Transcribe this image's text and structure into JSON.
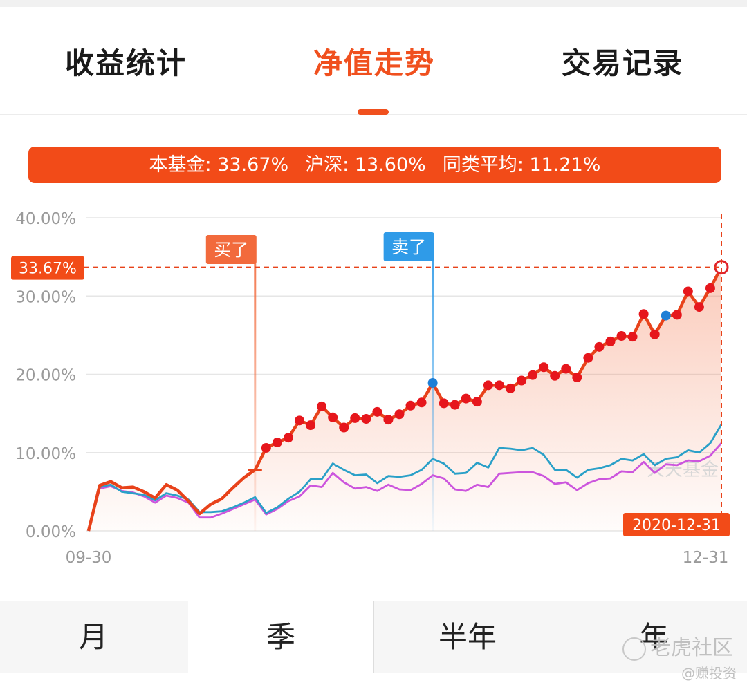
{
  "tabs": [
    {
      "label": "收益统计",
      "active": false
    },
    {
      "label": "净值走势",
      "active": true
    },
    {
      "label": "交易记录",
      "active": false
    }
  ],
  "summary": {
    "fund": "本基金: 33.67%",
    "hs": "沪深: 13.60%",
    "peer": "同类平均: 11.21%"
  },
  "markers": {
    "buy": "买了",
    "sell": "卖了",
    "current_value": "33.67%",
    "end_date": "2020-12-31"
  },
  "chart_watermark": "天天基金",
  "periods": [
    "月",
    "季",
    "半年",
    "年"
  ],
  "active_period": "季",
  "watermarks": {
    "brand": "老虎社区",
    "author": "@赚投资"
  },
  "colors": {
    "accent": "#f0501e",
    "fund_line": "#e8421a",
    "hs_line": "#2aa0c8",
    "peer_line": "#cc55dd",
    "buy": "#f26a3c",
    "sell": "#2f9be8"
  },
  "chart_data": {
    "type": "line",
    "x_start": "09-30",
    "x_end": "12-31",
    "yticks": [
      "0.00%",
      "10.00%",
      "20.00%",
      "30.00%",
      "40.00%"
    ],
    "ylim": [
      0,
      40
    ],
    "buy_index": 15,
    "sell_index": 31,
    "series": [
      {
        "name": "本基金",
        "values": [
          0,
          5.8,
          6.3,
          5.5,
          5.6,
          5.0,
          4.2,
          5.9,
          5.2,
          3.8,
          2.2,
          3.4,
          4.1,
          5.5,
          6.8,
          7.8,
          10.6,
          11.3,
          11.9,
          14.1,
          13.5,
          15.9,
          14.5,
          13.2,
          14.4,
          14.3,
          15.2,
          14.2,
          14.9,
          16.0,
          16.4,
          18.9,
          16.3,
          16.1,
          16.9,
          16.5,
          18.6,
          18.6,
          18.2,
          19.2,
          19.9,
          20.9,
          19.8,
          20.7,
          19.6,
          22.1,
          23.5,
          24.2,
          24.9,
          24.8,
          27.7,
          25.1,
          27.5,
          27.6,
          30.6,
          28.6,
          31.0,
          33.67
        ]
      },
      {
        "name": "沪深",
        "values": [
          0,
          5.6,
          5.9,
          5.0,
          4.8,
          4.6,
          3.9,
          4.8,
          4.5,
          4.0,
          2.4,
          2.4,
          2.5,
          3.0,
          3.6,
          4.3,
          2.3,
          3.0,
          4.1,
          5.0,
          6.6,
          6.6,
          8.6,
          7.8,
          7.1,
          7.2,
          6.1,
          7.0,
          6.9,
          7.1,
          7.8,
          9.2,
          8.6,
          7.3,
          7.4,
          8.7,
          8.1,
          10.6,
          10.5,
          10.3,
          10.6,
          9.7,
          7.8,
          7.8,
          6.8,
          7.8,
          8.0,
          8.4,
          9.2,
          9.0,
          9.8,
          8.4,
          9.2,
          9.4,
          10.3,
          10.0,
          11.2,
          13.6
        ]
      },
      {
        "name": "同类平均",
        "values": [
          0,
          5.4,
          5.7,
          5.1,
          4.9,
          4.4,
          3.6,
          4.5,
          4.2,
          3.6,
          1.7,
          1.7,
          2.2,
          2.8,
          3.4,
          4.0,
          2.1,
          2.8,
          3.8,
          4.4,
          5.8,
          5.6,
          7.4,
          6.2,
          5.4,
          5.6,
          5.1,
          5.9,
          5.3,
          5.2,
          6.0,
          7.1,
          6.7,
          5.3,
          5.1,
          5.9,
          5.6,
          7.3,
          7.4,
          7.5,
          7.5,
          7.0,
          6.0,
          6.2,
          5.2,
          6.1,
          6.6,
          6.7,
          7.6,
          7.5,
          8.8,
          7.4,
          8.5,
          8.4,
          9.0,
          8.9,
          9.6,
          11.21
        ]
      }
    ]
  }
}
